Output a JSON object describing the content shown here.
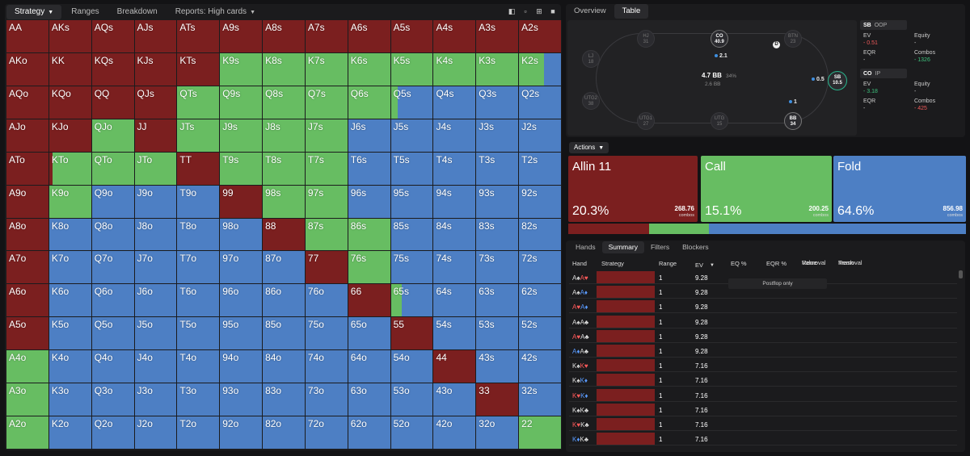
{
  "left_tabs": [
    {
      "label": "Strategy",
      "caret": true,
      "active": true
    },
    {
      "label": "Ranges"
    },
    {
      "label": "Breakdown"
    },
    {
      "label": "Reports: High cards",
      "caret": true
    }
  ],
  "colors": {
    "allin": "#7b1f1f",
    "call": "#67bd62",
    "fold": "#4d7fc4"
  },
  "matrix": [
    [
      "AA",
      "AKs",
      "AQs",
      "AJs",
      "ATs",
      "A9s",
      "A8s",
      "A7s",
      "A6s",
      "A5s",
      "A4s",
      "A3s",
      "A2s"
    ],
    [
      "AKo",
      "KK",
      "KQs",
      "KJs",
      "KTs",
      "K9s",
      "K8s",
      "K7s",
      "K6s",
      "K5s",
      "K4s",
      "K3s",
      "K2s"
    ],
    [
      "AQo",
      "KQo",
      "QQ",
      "QJs",
      "QTs",
      "Q9s",
      "Q8s",
      "Q7s",
      "Q6s",
      "Q5s",
      "Q4s",
      "Q3s",
      "Q2s"
    ],
    [
      "AJo",
      "KJo",
      "QJo",
      "JJ",
      "JTs",
      "J9s",
      "J8s",
      "J7s",
      "J6s",
      "J5s",
      "J4s",
      "J3s",
      "J2s"
    ],
    [
      "ATo",
      "KTo",
      "QTo",
      "JTo",
      "TT",
      "T9s",
      "T8s",
      "T7s",
      "T6s",
      "T5s",
      "T4s",
      "T3s",
      "T2s"
    ],
    [
      "A9o",
      "K9o",
      "Q9o",
      "J9o",
      "T9o",
      "99",
      "98s",
      "97s",
      "96s",
      "95s",
      "94s",
      "93s",
      "92s"
    ],
    [
      "A8o",
      "K8o",
      "Q8o",
      "J8o",
      "T8o",
      "98o",
      "88",
      "87s",
      "86s",
      "85s",
      "84s",
      "83s",
      "82s"
    ],
    [
      "A7o",
      "K7o",
      "Q7o",
      "J7o",
      "T7o",
      "97o",
      "87o",
      "77",
      "76s",
      "75s",
      "74s",
      "73s",
      "72s"
    ],
    [
      "A6o",
      "K6o",
      "Q6o",
      "J6o",
      "T6o",
      "96o",
      "86o",
      "76o",
      "66",
      "65s",
      "64s",
      "63s",
      "62s"
    ],
    [
      "A5o",
      "K5o",
      "Q5o",
      "J5o",
      "T5o",
      "95o",
      "85o",
      "75o",
      "65o",
      "55",
      "54s",
      "53s",
      "52s"
    ],
    [
      "A4o",
      "K4o",
      "Q4o",
      "J4o",
      "T4o",
      "94o",
      "84o",
      "74o",
      "64o",
      "54o",
      "44",
      "43s",
      "42s"
    ],
    [
      "A3o",
      "K3o",
      "Q3o",
      "J3o",
      "T3o",
      "93o",
      "83o",
      "73o",
      "63o",
      "53o",
      "43o",
      "33",
      "32s"
    ],
    [
      "A2o",
      "K2o",
      "Q2o",
      "J2o",
      "T2o",
      "92o",
      "82o",
      "72o",
      "62o",
      "52o",
      "42o",
      "32o",
      "22"
    ]
  ],
  "freqs": {
    "AA": [
      1,
      0,
      0
    ],
    "AKs": [
      1,
      0,
      0
    ],
    "AQs": [
      1,
      0,
      0
    ],
    "AJs": [
      1,
      0,
      0
    ],
    "ATs": [
      1,
      0,
      0
    ],
    "A9s": [
      1,
      0,
      0
    ],
    "A8s": [
      1,
      0,
      0
    ],
    "A7s": [
      1,
      0,
      0
    ],
    "A6s": [
      1,
      0,
      0
    ],
    "A5s": [
      1,
      0,
      0
    ],
    "A4s": [
      1,
      0,
      0
    ],
    "A3s": [
      1,
      0,
      0
    ],
    "A2s": [
      1,
      0,
      0
    ],
    "AKo": [
      1,
      0,
      0
    ],
    "KK": [
      1,
      0,
      0
    ],
    "KQs": [
      1,
      0,
      0
    ],
    "KJs": [
      1,
      0,
      0
    ],
    "KTs": [
      1,
      0,
      0
    ],
    "K9s": [
      0,
      1,
      0
    ],
    "K8s": [
      0,
      1,
      0
    ],
    "K7s": [
      0,
      1,
      0
    ],
    "K6s": [
      0,
      1,
      0
    ],
    "K5s": [
      0,
      1,
      0
    ],
    "K4s": [
      0,
      1,
      0
    ],
    "K3s": [
      0,
      1,
      0
    ],
    "K2s": [
      0,
      0.6,
      0.4
    ],
    "AQo": [
      1,
      0,
      0
    ],
    "KQo": [
      1,
      0,
      0
    ],
    "QQ": [
      1,
      0,
      0
    ],
    "QJs": [
      1,
      0,
      0
    ],
    "QTs": [
      0,
      1,
      0
    ],
    "Q9s": [
      0,
      1,
      0
    ],
    "Q8s": [
      0,
      1,
      0
    ],
    "Q7s": [
      0,
      1,
      0
    ],
    "Q6s": [
      0,
      1,
      0
    ],
    "Q5s": [
      0,
      0.17,
      0.83
    ],
    "Q4s": [
      0,
      0,
      1
    ],
    "Q3s": [
      0,
      0,
      1
    ],
    "Q2s": [
      0,
      0,
      1
    ],
    "AJo": [
      1,
      0,
      0
    ],
    "KJo": [
      1,
      0,
      0
    ],
    "QJo": [
      0,
      1,
      0
    ],
    "JJ": [
      1,
      0,
      0
    ],
    "JTs": [
      0,
      1,
      0
    ],
    "J9s": [
      0,
      1,
      0
    ],
    "J8s": [
      0,
      1,
      0
    ],
    "J7s": [
      0,
      1,
      0
    ],
    "J6s": [
      0,
      0,
      1
    ],
    "J5s": [
      0,
      0,
      1
    ],
    "J4s": [
      0,
      0,
      1
    ],
    "J3s": [
      0,
      0,
      1
    ],
    "J2s": [
      0,
      0,
      1
    ],
    "ATo": [
      1,
      0,
      0
    ],
    "KTo": [
      0.08,
      0.92,
      0
    ],
    "QTo": [
      0,
      1,
      0
    ],
    "JTo": [
      0,
      1,
      0
    ],
    "TT": [
      1,
      0,
      0
    ],
    "T9s": [
      0,
      1,
      0
    ],
    "T8s": [
      0,
      1,
      0
    ],
    "T7s": [
      0,
      1,
      0
    ],
    "T6s": [
      0,
      0,
      1
    ],
    "T5s": [
      0,
      0,
      1
    ],
    "T4s": [
      0,
      0,
      1
    ],
    "T3s": [
      0,
      0,
      1
    ],
    "T2s": [
      0,
      0,
      1
    ],
    "A9o": [
      1,
      0,
      0
    ],
    "K9o": [
      0,
      1,
      0
    ],
    "Q9o": [
      0,
      0,
      1
    ],
    "J9o": [
      0,
      0,
      1
    ],
    "T9o": [
      0,
      0,
      1
    ],
    "99": [
      1,
      0,
      0
    ],
    "98s": [
      0,
      1,
      0
    ],
    "97s": [
      0,
      1,
      0
    ],
    "96s": [
      0,
      0,
      1
    ],
    "95s": [
      0,
      0,
      1
    ],
    "94s": [
      0,
      0,
      1
    ],
    "93s": [
      0,
      0,
      1
    ],
    "92s": [
      0,
      0,
      1
    ],
    "A8o": [
      1,
      0,
      0
    ],
    "K8o": [
      0,
      0,
      1
    ],
    "Q8o": [
      0,
      0,
      1
    ],
    "J8o": [
      0,
      0,
      1
    ],
    "T8o": [
      0,
      0,
      1
    ],
    "98o": [
      0,
      0,
      1
    ],
    "88": [
      1,
      0,
      0
    ],
    "87s": [
      0,
      1,
      0
    ],
    "86s": [
      0,
      1,
      0
    ],
    "85s": [
      0,
      0,
      1
    ],
    "84s": [
      0,
      0,
      1
    ],
    "83s": [
      0,
      0,
      1
    ],
    "82s": [
      0,
      0,
      1
    ],
    "A7o": [
      1,
      0,
      0
    ],
    "K7o": [
      0,
      0,
      1
    ],
    "Q7o": [
      0,
      0,
      1
    ],
    "J7o": [
      0,
      0,
      1
    ],
    "T7o": [
      0,
      0,
      1
    ],
    "97o": [
      0,
      0,
      1
    ],
    "87o": [
      0,
      0,
      1
    ],
    "77": [
      1,
      0,
      0
    ],
    "76s": [
      0,
      1,
      0
    ],
    "75s": [
      0,
      0,
      1
    ],
    "74s": [
      0,
      0,
      1
    ],
    "73s": [
      0,
      0,
      1
    ],
    "72s": [
      0,
      0,
      1
    ],
    "A6o": [
      1,
      0,
      0
    ],
    "K6o": [
      0,
      0,
      1
    ],
    "Q6o": [
      0,
      0,
      1
    ],
    "J6o": [
      0,
      0,
      1
    ],
    "T6o": [
      0,
      0,
      1
    ],
    "96o": [
      0,
      0,
      1
    ],
    "86o": [
      0,
      0,
      1
    ],
    "76o": [
      0,
      0,
      1
    ],
    "66": [
      1,
      0,
      0
    ],
    "65s": [
      0,
      0.25,
      0.75
    ],
    "64s": [
      0,
      0,
      1
    ],
    "63s": [
      0,
      0,
      1
    ],
    "62s": [
      0,
      0,
      1
    ],
    "A5o": [
      1,
      0,
      0
    ],
    "K5o": [
      0,
      0,
      1
    ],
    "Q5o": [
      0,
      0,
      1
    ],
    "J5o": [
      0,
      0,
      1
    ],
    "T5o": [
      0,
      0,
      1
    ],
    "95o": [
      0,
      0,
      1
    ],
    "85o": [
      0,
      0,
      1
    ],
    "75o": [
      0,
      0,
      1
    ],
    "65o": [
      0,
      0,
      1
    ],
    "55": [
      1,
      0,
      0
    ],
    "54s": [
      0,
      0,
      1
    ],
    "53s": [
      0,
      0,
      1
    ],
    "52s": [
      0,
      0,
      1
    ],
    "A4o": [
      0,
      1,
      0
    ],
    "K4o": [
      0,
      0,
      1
    ],
    "Q4o": [
      0,
      0,
      1
    ],
    "J4o": [
      0,
      0,
      1
    ],
    "T4o": [
      0,
      0,
      1
    ],
    "94o": [
      0,
      0,
      1
    ],
    "84o": [
      0,
      0,
      1
    ],
    "74o": [
      0,
      0,
      1
    ],
    "64o": [
      0,
      0,
      1
    ],
    "54o": [
      0,
      0,
      1
    ],
    "44": [
      1,
      0,
      0
    ],
    "43s": [
      0,
      0,
      1
    ],
    "42s": [
      0,
      0,
      1
    ],
    "A3o": [
      0,
      1,
      0
    ],
    "K3o": [
      0,
      0,
      1
    ],
    "Q3o": [
      0,
      0,
      1
    ],
    "J3o": [
      0,
      0,
      1
    ],
    "T3o": [
      0,
      0,
      1
    ],
    "93o": [
      0,
      0,
      1
    ],
    "83o": [
      0,
      0,
      1
    ],
    "73o": [
      0,
      0,
      1
    ],
    "63o": [
      0,
      0,
      1
    ],
    "53o": [
      0,
      0,
      1
    ],
    "43o": [
      0,
      0,
      1
    ],
    "33": [
      1,
      0,
      0
    ],
    "32s": [
      0,
      0,
      1
    ],
    "A2o": [
      0,
      1,
      0
    ],
    "K2o": [
      0,
      0,
      1
    ],
    "Q2o": [
      0,
      0,
      1
    ],
    "J2o": [
      0,
      0,
      1
    ],
    "T2o": [
      0,
      0,
      1
    ],
    "92o": [
      0,
      0,
      1
    ],
    "82o": [
      0,
      0,
      1
    ],
    "72o": [
      0,
      0,
      1
    ],
    "62o": [
      0,
      0,
      1
    ],
    "52o": [
      0,
      0,
      1
    ],
    "42o": [
      0,
      0,
      1
    ],
    "32o": [
      0,
      0,
      1
    ],
    "22": [
      0,
      1,
      0
    ]
  },
  "right_tabs": [
    {
      "label": "Overview"
    },
    {
      "label": "Table",
      "active": true
    }
  ],
  "table": {
    "pot": "4.7 BB",
    "pot_pct": "34%",
    "pot_sub": "2.6 BB",
    "seats": [
      {
        "name": "HJ",
        "stack": "31"
      },
      {
        "name": "CO",
        "stack": "40.9"
      },
      {
        "name": "BTN",
        "stack": "23"
      },
      {
        "name": "LJ",
        "stack": "18"
      },
      {
        "name": "UTG2",
        "stack": "38"
      },
      {
        "name": "UTG1",
        "stack": "27"
      },
      {
        "name": "UTG",
        "stack": "15"
      },
      {
        "name": "BB",
        "stack": "34"
      },
      {
        "name": "SB",
        "stack": "10.5"
      }
    ],
    "bets": {
      "co": "2.1",
      "sb": "0.5",
      "bb": "1"
    },
    "dealer": "D"
  },
  "info": [
    {
      "pos": "SB",
      "tag": "OOP",
      "ev_label": "EV",
      "ev": "- 0.51",
      "equity_label": "Equity",
      "equity": "-",
      "eqr_label": "EQR",
      "eqr": "-",
      "combos_label": "Combos",
      "combos": "- 1326"
    },
    {
      "pos": "CO",
      "tag": "IP",
      "ev_label": "EV",
      "ev": "- 3.18",
      "equity_label": "Equity",
      "equity": "-",
      "eqr_label": "EQR",
      "eqr": "-",
      "combos_label": "Combos",
      "combos": "- 425"
    }
  ],
  "actions_label": "Actions",
  "actions": [
    {
      "name": "Allin 11",
      "pct": "20.3%",
      "combos": "268.76",
      "combos_label": "combos",
      "freq": 0.203
    },
    {
      "name": "Call",
      "pct": "15.1%",
      "combos": "200.25",
      "combos_label": "combos",
      "freq": 0.151
    },
    {
      "name": "Fold",
      "pct": "64.6%",
      "combos": "856.98",
      "combos_label": "combos",
      "freq": 0.646
    }
  ],
  "bottom_tabs": [
    {
      "label": "Hands"
    },
    {
      "label": "Summary",
      "active": true
    },
    {
      "label": "Filters"
    },
    {
      "label": "Blockers"
    }
  ],
  "columns": {
    "hand": "Hand",
    "strategy": "Strategy",
    "range": "Range",
    "ev": "EV",
    "eq": "EQ %",
    "eqr": "EQR %",
    "value": "Value",
    "value2": "Removal",
    "trash": "Trash",
    "trash2": "Removal"
  },
  "postflop_only": "Postflop only",
  "hands": [
    {
      "c1": "A",
      "s1": "♠",
      "c2": "A",
      "s2": "♥",
      "range": "1",
      "ev": "9.28"
    },
    {
      "c1": "A",
      "s1": "♠",
      "c2": "A",
      "s2": "♦",
      "range": "1",
      "ev": "9.28"
    },
    {
      "c1": "A",
      "s1": "♥",
      "c2": "A",
      "s2": "♦",
      "range": "1",
      "ev": "9.28"
    },
    {
      "c1": "A",
      "s1": "♠",
      "c2": "A",
      "s2": "♣",
      "range": "1",
      "ev": "9.28"
    },
    {
      "c1": "A",
      "s1": "♥",
      "c2": "A",
      "s2": "♣",
      "range": "1",
      "ev": "9.28"
    },
    {
      "c1": "A",
      "s1": "♦",
      "c2": "A",
      "s2": "♣",
      "range": "1",
      "ev": "9.28"
    },
    {
      "c1": "K",
      "s1": "♠",
      "c2": "K",
      "s2": "♥",
      "range": "1",
      "ev": "7.16"
    },
    {
      "c1": "K",
      "s1": "♠",
      "c2": "K",
      "s2": "♦",
      "range": "1",
      "ev": "7.16"
    },
    {
      "c1": "K",
      "s1": "♥",
      "c2": "K",
      "s2": "♦",
      "range": "1",
      "ev": "7.16"
    },
    {
      "c1": "K",
      "s1": "♠",
      "c2": "K",
      "s2": "♣",
      "range": "1",
      "ev": "7.16"
    },
    {
      "c1": "K",
      "s1": "♥",
      "c2": "K",
      "s2": "♣",
      "range": "1",
      "ev": "7.16"
    },
    {
      "c1": "K",
      "s1": "♦",
      "c2": "K",
      "s2": "♣",
      "range": "1",
      "ev": "7.16"
    }
  ]
}
